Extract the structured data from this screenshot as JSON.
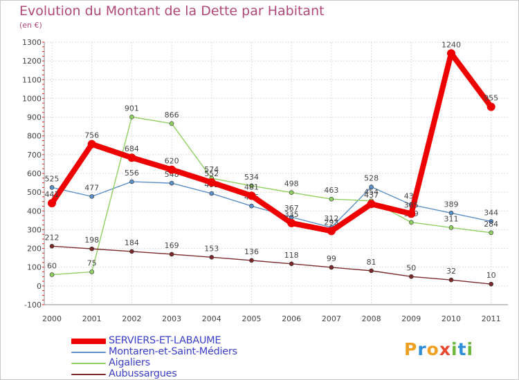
{
  "title": "Evolution du Montant de la Dette par Habitant",
  "subtitle": "(en €)",
  "logo": {
    "letters": [
      "P",
      "r",
      "o",
      "x",
      "i",
      "t",
      "i"
    ]
  },
  "chart_data": {
    "type": "line",
    "x": [
      "2000",
      "2001",
      "2002",
      "2003",
      "2004",
      "2005",
      "2006",
      "2007",
      "2008",
      "2009",
      "2010",
      "2011"
    ],
    "ylim": [
      -100,
      1300
    ],
    "yticks": [
      "-100",
      "0",
      "100",
      "200",
      "300",
      "400",
      "500",
      "600",
      "700",
      "800",
      "900",
      "1000",
      "1100",
      "1200",
      "1300"
    ],
    "ytick_values": [
      -100,
      0,
      100,
      200,
      300,
      400,
      500,
      600,
      700,
      800,
      900,
      1000,
      1100,
      1200,
      1300
    ],
    "grid": true,
    "legend_position": "bottom-left",
    "series": [
      {
        "name": "Montaren-et-Saint-Médiers",
        "color": "#5a8fc8",
        "values": [
          525,
          477,
          556,
          548,
          493,
          426,
          367,
          312,
          528,
          433,
          389,
          344
        ],
        "labels": [
          "525",
          "477",
          "556",
          "548",
          "493",
          "426",
          "367",
          "312",
          "528",
          "433",
          "389",
          "344"
        ]
      },
      {
        "name": "Aigaliers",
        "color": "#8fd060",
        "values": [
          60,
          75,
          901,
          866,
          574,
          534,
          498,
          463,
          454,
          339,
          311,
          284
        ],
        "labels": [
          "60",
          "75",
          "901",
          "866",
          "574",
          "534",
          "498",
          "463",
          "454",
          "339",
          "311",
          "284"
        ]
      },
      {
        "name": "Aubussargues",
        "color": "#7a2a2a",
        "values": [
          212,
          198,
          184,
          169,
          153,
          136,
          118,
          99,
          81,
          50,
          32,
          10
        ],
        "labels": [
          "212",
          "198",
          "184",
          "169",
          "153",
          "136",
          "118",
          "99",
          "81",
          "50",
          "32",
          "10"
        ]
      },
      {
        "name": "SERVIERS-ET-LABAUME",
        "color": "#ee0000",
        "values": [
          441,
          756,
          684,
          620,
          552,
          481,
          335,
          293,
          437,
          385,
          1240,
          955
        ],
        "labels": [
          "441",
          "756",
          "684",
          "620",
          "552",
          "481",
          "335",
          "293",
          "437",
          "385",
          "1240",
          "955"
        ]
      }
    ],
    "legend_order": [
      "SERVIERS-ET-LABAUME",
      "Montaren-et-Saint-Médiers",
      "Aigaliers",
      "Aubussargues"
    ]
  },
  "legend": {
    "items": [
      {
        "label": "SERVIERS-ET-LABAUME",
        "color": "#ee0000"
      },
      {
        "label": "Montaren-et-Saint-Médiers",
        "color": "#5a8fc8"
      },
      {
        "label": "Aigaliers",
        "color": "#8fd060"
      },
      {
        "label": "Aubussargues",
        "color": "#7a2a2a"
      }
    ]
  }
}
